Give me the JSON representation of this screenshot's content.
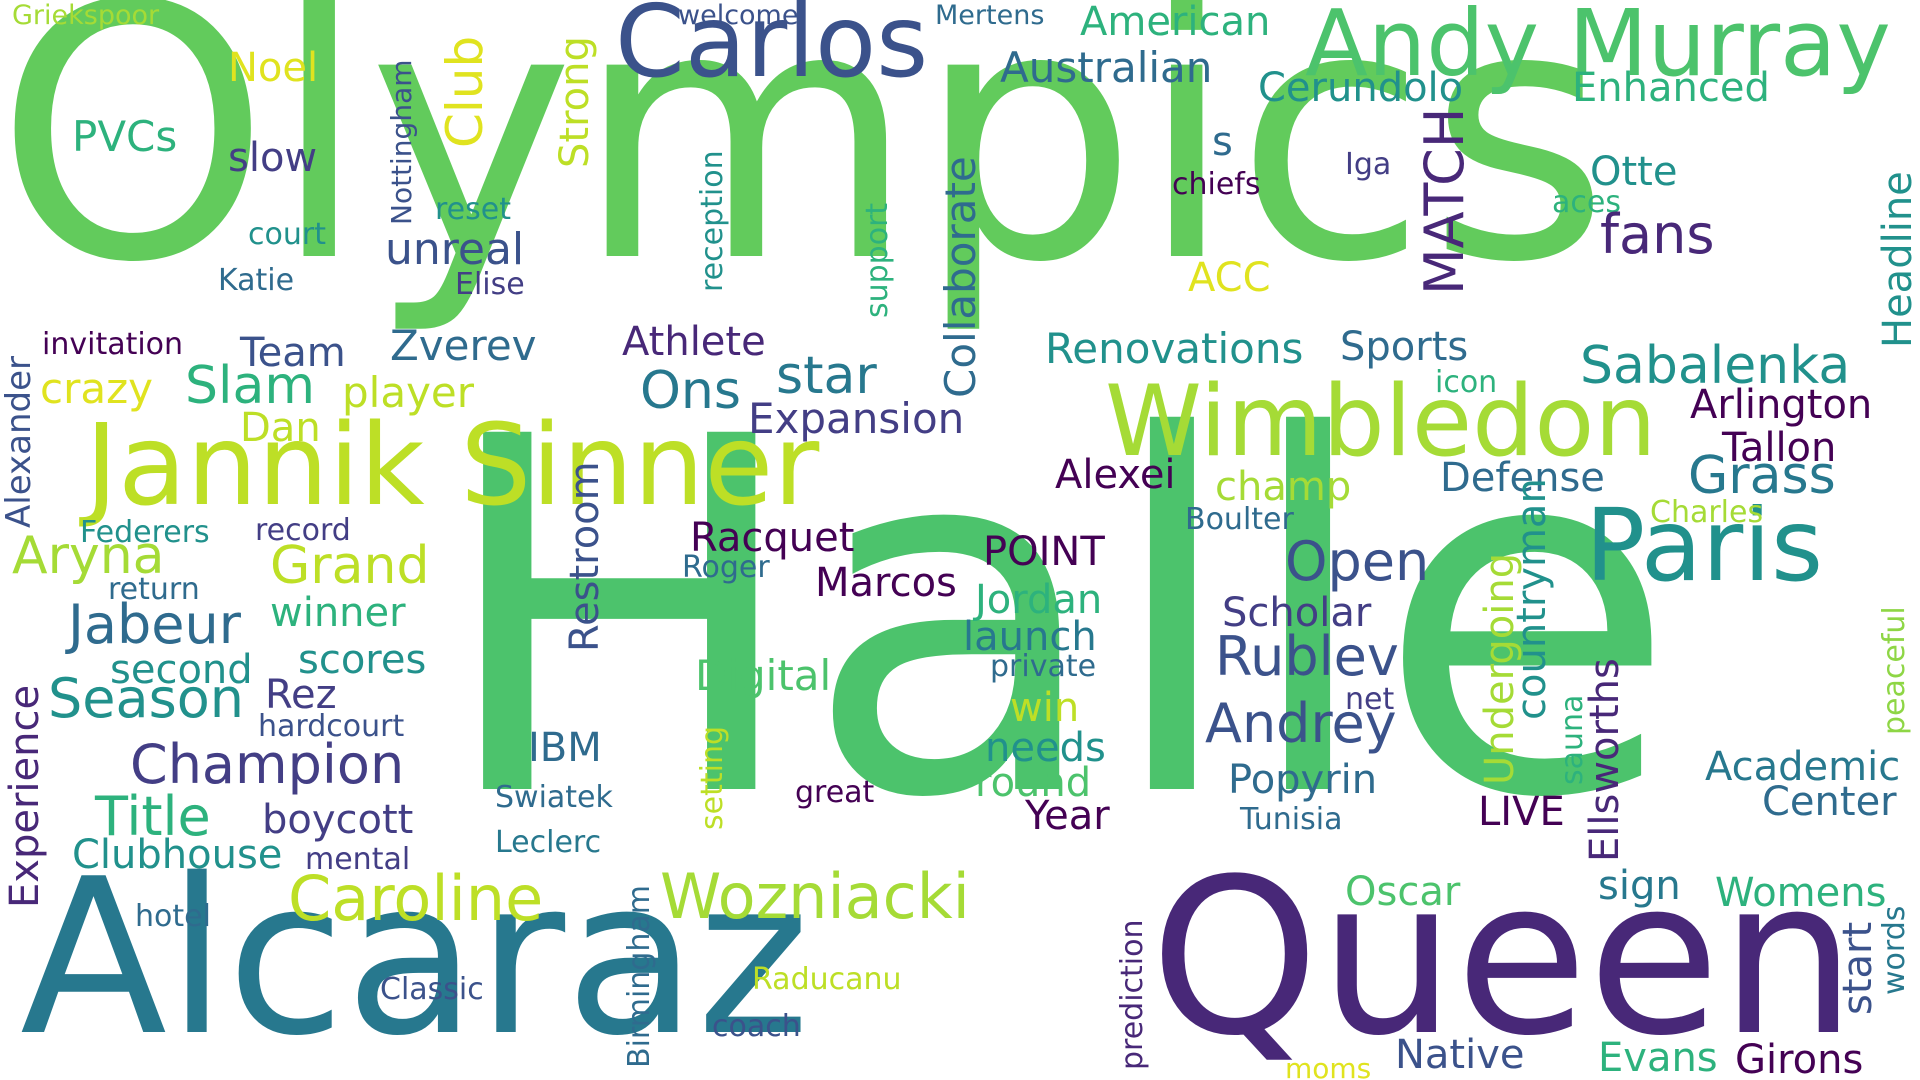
{
  "palette": {
    "light_green": "#62cb5c",
    "green": "#4cc36c",
    "teal_green": "#2db27d",
    "teal": "#21918c",
    "deep_teal": "#27788e",
    "blue": "#2f6b8e",
    "indigo": "#3b528b",
    "purple_blue": "#433e85",
    "purple": "#482878",
    "dark_purple": "#440154",
    "lime": "#a5db36",
    "yellow_green": "#bddf26",
    "yellow": "#e0e31f",
    "pale_green": "#8ed645"
  },
  "words": [
    {
      "text": "Olympics",
      "color": "#62cb5c"
    },
    {
      "text": "Halle",
      "color": "#4cc36c"
    },
    {
      "text": "Alcaraz",
      "color": "#27788e"
    },
    {
      "text": "Queen",
      "color": "#482878"
    },
    {
      "text": "Carlos",
      "color": "#3b528b"
    },
    {
      "text": "Andy Murray",
      "color": "#4cc36c"
    },
    {
      "text": "Jannik Sinner",
      "color": "#bddf26"
    },
    {
      "text": "Wimbledon",
      "color": "#a5db36"
    },
    {
      "text": "Paris",
      "color": "#21918c"
    },
    {
      "text": "Caroline",
      "color": "#bddf26"
    },
    {
      "text": "Wozniacki",
      "color": "#a5db36"
    },
    {
      "text": "Griekspoor",
      "color": "#a5db36"
    },
    {
      "text": "welcome",
      "color": "#3b528b"
    },
    {
      "text": "Mertens",
      "color": "#2f6b8e"
    },
    {
      "text": "American",
      "color": "#2db27d"
    },
    {
      "text": "Australian",
      "color": "#2f6b8e"
    },
    {
      "text": "Cerundolo",
      "color": "#21918c"
    },
    {
      "text": "Enhanced",
      "color": "#2db27d"
    },
    {
      "text": "Noel",
      "color": "#e0e31f"
    },
    {
      "text": "Nottingham",
      "color": "#3b528b"
    },
    {
      "text": "Club",
      "color": "#e0e31f"
    },
    {
      "text": "Strong",
      "color": "#bddf26"
    },
    {
      "text": "PVCs",
      "color": "#2db27d"
    },
    {
      "text": "slow",
      "color": "#433e85"
    },
    {
      "text": "reset",
      "color": "#21918c"
    },
    {
      "text": "court",
      "color": "#21918c"
    },
    {
      "text": "unreal",
      "color": "#3b528b"
    },
    {
      "text": "Katie",
      "color": "#2f6b8e"
    },
    {
      "text": "Elise",
      "color": "#433e85"
    },
    {
      "text": "reception",
      "color": "#21918c"
    },
    {
      "text": "support",
      "color": "#2db27d"
    },
    {
      "text": "Collaborate",
      "color": "#2f6b8e"
    },
    {
      "text": "MATCH",
      "color": "#482878"
    },
    {
      "text": "s",
      "color": "#2f6b8e"
    },
    {
      "text": "Iga",
      "color": "#433e85"
    },
    {
      "text": "chiefs",
      "color": "#440154"
    },
    {
      "text": "ACC",
      "color": "#e0e31f"
    },
    {
      "text": "Otte",
      "color": "#21918c"
    },
    {
      "text": "aces",
      "color": "#2db27d"
    },
    {
      "text": "fans",
      "color": "#482878"
    },
    {
      "text": "Headline",
      "color": "#21918c"
    },
    {
      "text": "Alexander",
      "color": "#3b528b"
    },
    {
      "text": "invitation",
      "color": "#440154"
    },
    {
      "text": "Team",
      "color": "#3b528b"
    },
    {
      "text": "Zverev",
      "color": "#2f6b8e"
    },
    {
      "text": "Athlete",
      "color": "#482878"
    },
    {
      "text": "Renovations",
      "color": "#21918c"
    },
    {
      "text": "Sports",
      "color": "#2f6b8e"
    },
    {
      "text": "icon",
      "color": "#2db27d"
    },
    {
      "text": "Sabalenka",
      "color": "#21918c"
    },
    {
      "text": "crazy",
      "color": "#e0e31f"
    },
    {
      "text": "Slam",
      "color": "#2db27d"
    },
    {
      "text": "player",
      "color": "#bddf26"
    },
    {
      "text": "Ons",
      "color": "#27788e"
    },
    {
      "text": "star",
      "color": "#27788e"
    },
    {
      "text": "Expansion",
      "color": "#433e85"
    },
    {
      "text": "Arlington",
      "color": "#440154"
    },
    {
      "text": "Dan",
      "color": "#bddf26"
    },
    {
      "text": "Tallon",
      "color": "#440154"
    },
    {
      "text": "Alexei",
      "color": "#440154"
    },
    {
      "text": "champ",
      "color": "#a5db36"
    },
    {
      "text": "Defense",
      "color": "#2f6b8e"
    },
    {
      "text": "Grass",
      "color": "#27788e"
    },
    {
      "text": "Charles",
      "color": "#a5db36"
    },
    {
      "text": "Boulter",
      "color": "#2f6b8e"
    },
    {
      "text": "Federers",
      "color": "#21918c"
    },
    {
      "text": "record",
      "color": "#433e85"
    },
    {
      "text": "Restroom",
      "color": "#3b528b"
    },
    {
      "text": "Racquet",
      "color": "#440154"
    },
    {
      "text": "POINT",
      "color": "#440154"
    },
    {
      "text": "Aryna",
      "color": "#a5db36"
    },
    {
      "text": "Grand",
      "color": "#bddf26"
    },
    {
      "text": "Roger",
      "color": "#2f6b8e"
    },
    {
      "text": "Open",
      "color": "#3b528b"
    },
    {
      "text": "countryman",
      "color": "#21918c"
    },
    {
      "text": "return",
      "color": "#2f6b8e"
    },
    {
      "text": "Marcos",
      "color": "#440154"
    },
    {
      "text": "Jordan",
      "color": "#2db27d"
    },
    {
      "text": "Scholar",
      "color": "#433e85"
    },
    {
      "text": "peaceful",
      "color": "#8ed645"
    },
    {
      "text": "Jabeur",
      "color": "#2f6b8e"
    },
    {
      "text": "winner",
      "color": "#2db27d"
    },
    {
      "text": "launch",
      "color": "#27788e"
    },
    {
      "text": "Undergoing",
      "color": "#a5db36"
    },
    {
      "text": "Ellsworths",
      "color": "#482878"
    },
    {
      "text": "Rublev",
      "color": "#3b528b"
    },
    {
      "text": "scores",
      "color": "#21918c"
    },
    {
      "text": "second",
      "color": "#21918c"
    },
    {
      "text": "Digital",
      "color": "#4cc36c"
    },
    {
      "text": "private",
      "color": "#2f6b8e"
    },
    {
      "text": "Experience",
      "color": "#482878"
    },
    {
      "text": "Season",
      "color": "#21918c"
    },
    {
      "text": "Rez",
      "color": "#433e85"
    },
    {
      "text": "net",
      "color": "#433e85"
    },
    {
      "text": "sauna",
      "color": "#2db27d"
    },
    {
      "text": "win",
      "color": "#bddf26"
    },
    {
      "text": "hardcourt",
      "color": "#3b528b"
    },
    {
      "text": "setting",
      "color": "#bddf26"
    },
    {
      "text": "IBM",
      "color": "#2f6b8e"
    },
    {
      "text": "Andrey",
      "color": "#3b528b"
    },
    {
      "text": "needs",
      "color": "#21918c"
    },
    {
      "text": "Champion",
      "color": "#433e85"
    },
    {
      "text": "Academic",
      "color": "#27788e"
    },
    {
      "text": "round",
      "color": "#4cc36c"
    },
    {
      "text": "Popyrin",
      "color": "#2f6b8e"
    },
    {
      "text": "Center",
      "color": "#2f6b8e"
    },
    {
      "text": "Swiatek",
      "color": "#2f6b8e"
    },
    {
      "text": "great",
      "color": "#440154"
    },
    {
      "text": "Title",
      "color": "#2db27d"
    },
    {
      "text": "boycott",
      "color": "#433e85"
    },
    {
      "text": "Year",
      "color": "#440154"
    },
    {
      "text": "LIVE",
      "color": "#440154"
    },
    {
      "text": "Tunisia",
      "color": "#2f6b8e"
    },
    {
      "text": "Clubhouse",
      "color": "#21918c"
    },
    {
      "text": "mental",
      "color": "#433e85"
    },
    {
      "text": "Leclerc",
      "color": "#27788e"
    },
    {
      "text": "Oscar",
      "color": "#4cc36c"
    },
    {
      "text": "sign",
      "color": "#27788e"
    },
    {
      "text": "Womens",
      "color": "#2db27d"
    },
    {
      "text": "hotel",
      "color": "#2f6b8e"
    },
    {
      "text": "Birmingham",
      "color": "#2f6b8e"
    },
    {
      "text": "prediction",
      "color": "#482878"
    },
    {
      "text": "words",
      "color": "#27788e"
    },
    {
      "text": "start",
      "color": "#3b528b"
    },
    {
      "text": "Classic",
      "color": "#3b528b"
    },
    {
      "text": "Raducanu",
      "color": "#bddf26"
    },
    {
      "text": "coach",
      "color": "#3b528b"
    },
    {
      "text": "Native",
      "color": "#3b528b"
    },
    {
      "text": "Evans",
      "color": "#2db27d"
    },
    {
      "text": "Girons",
      "color": "#440154"
    },
    {
      "text": "moms",
      "color": "#e0e31f"
    }
  ]
}
